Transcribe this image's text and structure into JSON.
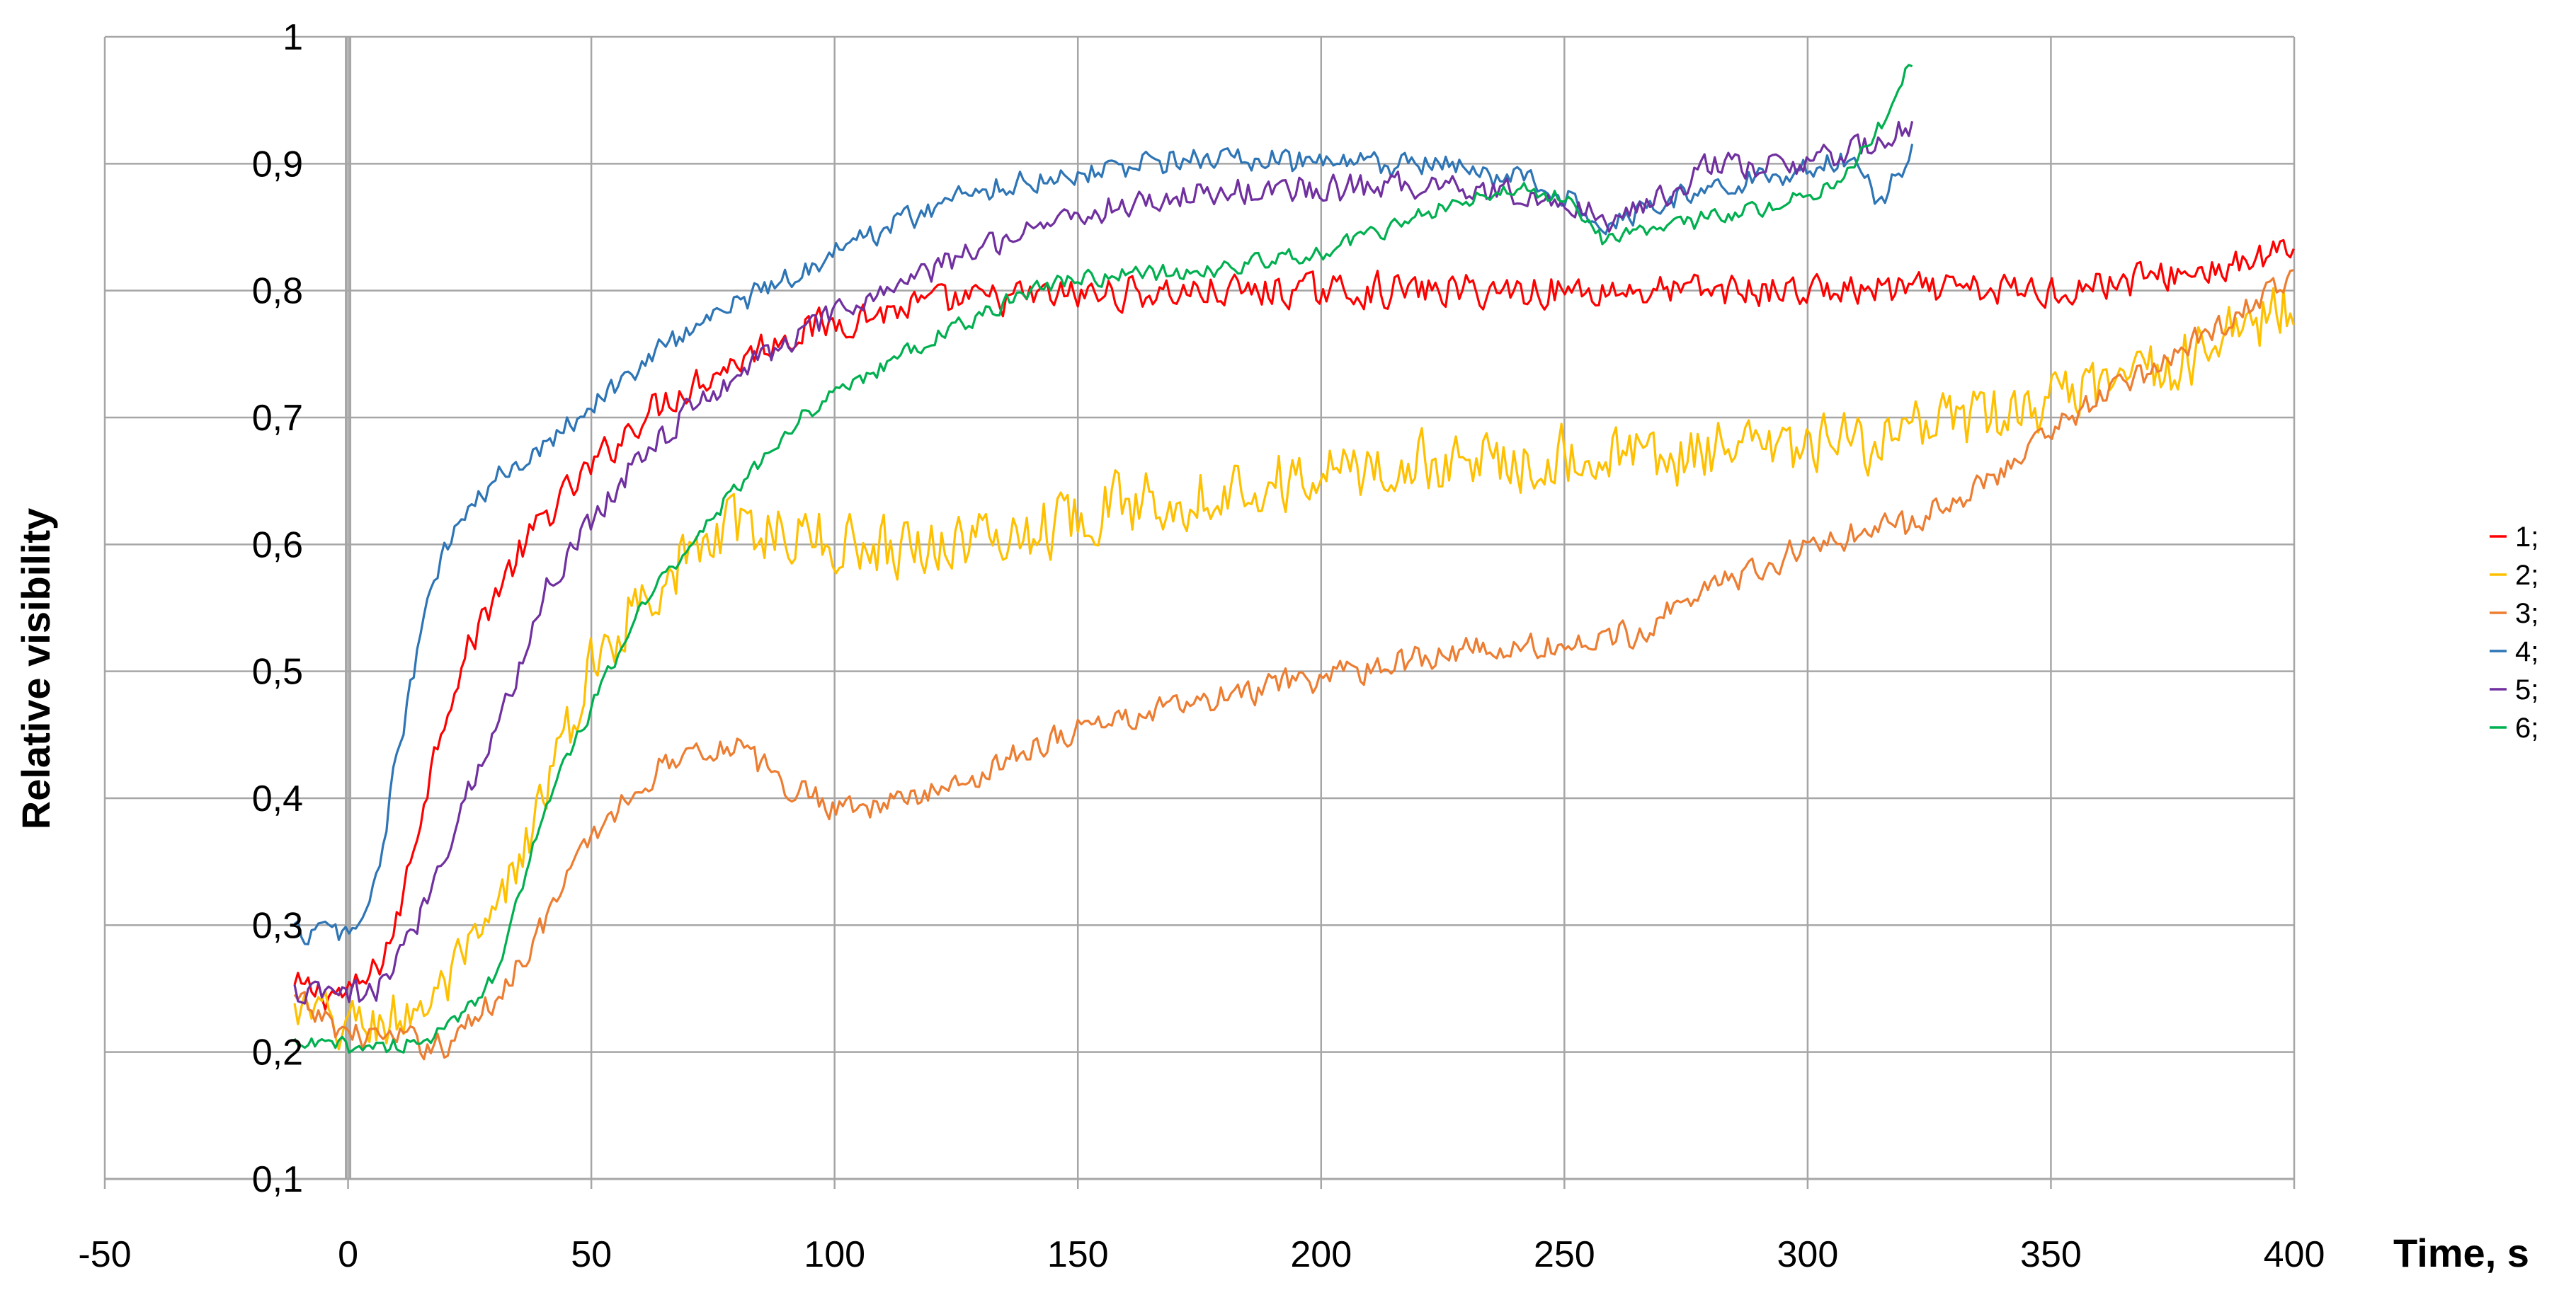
{
  "chart_data": {
    "type": "line",
    "title": "",
    "xlabel": "Time, s",
    "ylabel": "Relative visibility",
    "xlim": [
      -50,
      400
    ],
    "ylim": [
      0.1,
      1
    ],
    "x_ticks": [
      -50,
      0,
      50,
      100,
      150,
      200,
      250,
      300,
      350,
      400
    ],
    "x_tick_labels": [
      "-50",
      "0",
      "50",
      "100",
      "150",
      "200",
      "250",
      "300",
      "350",
      "400"
    ],
    "y_ticks": [
      0.1,
      0.2,
      0.3,
      0.4,
      0.5,
      0.6,
      0.7,
      0.8,
      0.9,
      1
    ],
    "y_tick_labels": [
      "0,1",
      "0,2",
      "0,3",
      "0,4",
      "0,5",
      "0,6",
      "0,7",
      "0,8",
      "0,9",
      "1"
    ],
    "grid": true,
    "legend_position": "right",
    "series": [
      {
        "name": "1;",
        "color": "#ff0000",
        "noise": 0.012,
        "points": [
          [
            -11,
            0.25
          ],
          [
            0,
            0.245
          ],
          [
            5,
            0.26
          ],
          [
            10,
            0.3
          ],
          [
            15,
            0.39
          ],
          [
            20,
            0.47
          ],
          [
            25,
            0.52
          ],
          [
            30,
            0.56
          ],
          [
            40,
            0.62
          ],
          [
            50,
            0.66
          ],
          [
            60,
            0.7
          ],
          [
            70,
            0.725
          ],
          [
            80,
            0.745
          ],
          [
            90,
            0.765
          ],
          [
            100,
            0.775
          ],
          [
            110,
            0.783
          ],
          [
            120,
            0.79
          ],
          [
            140,
            0.795
          ],
          [
            160,
            0.798
          ],
          [
            200,
            0.8
          ],
          [
            250,
            0.8
          ],
          [
            300,
            0.8
          ],
          [
            350,
            0.8
          ],
          [
            390,
            0.82
          ],
          [
            400,
            0.835
          ]
        ]
      },
      {
        "name": "2;",
        "color": "#ffc000",
        "noise": 0.022,
        "points": [
          [
            -11,
            0.23
          ],
          [
            0,
            0.22
          ],
          [
            10,
            0.225
          ],
          [
            20,
            0.25
          ],
          [
            30,
            0.3
          ],
          [
            40,
            0.4
          ],
          [
            50,
            0.5
          ],
          [
            60,
            0.56
          ],
          [
            70,
            0.59
          ],
          [
            80,
            0.615
          ],
          [
            90,
            0.61
          ],
          [
            100,
            0.6
          ],
          [
            120,
            0.6
          ],
          [
            140,
            0.61
          ],
          [
            150,
            0.625
          ],
          [
            175,
            0.64
          ],
          [
            200,
            0.655
          ],
          [
            225,
            0.665
          ],
          [
            250,
            0.67
          ],
          [
            275,
            0.67
          ],
          [
            300,
            0.675
          ],
          [
            325,
            0.69
          ],
          [
            350,
            0.71
          ],
          [
            375,
            0.74
          ],
          [
            400,
            0.79
          ]
        ]
      },
      {
        "name": "3;",
        "color": "#ed7d31",
        "noise": 0.01,
        "points": [
          [
            -11,
            0.24
          ],
          [
            0,
            0.215
          ],
          [
            10,
            0.21
          ],
          [
            20,
            0.205
          ],
          [
            30,
            0.24
          ],
          [
            40,
            0.3
          ],
          [
            50,
            0.37
          ],
          [
            60,
            0.41
          ],
          [
            70,
            0.44
          ],
          [
            80,
            0.44
          ],
          [
            90,
            0.41
          ],
          [
            100,
            0.395
          ],
          [
            110,
            0.395
          ],
          [
            125,
            0.41
          ],
          [
            140,
            0.44
          ],
          [
            150,
            0.455
          ],
          [
            175,
            0.475
          ],
          [
            200,
            0.495
          ],
          [
            225,
            0.515
          ],
          [
            250,
            0.52
          ],
          [
            265,
            0.53
          ],
          [
            275,
            0.56
          ],
          [
            290,
            0.58
          ],
          [
            300,
            0.6
          ],
          [
            320,
            0.615
          ],
          [
            335,
            0.645
          ],
          [
            350,
            0.69
          ],
          [
            375,
            0.75
          ],
          [
            400,
            0.81
          ]
        ]
      },
      {
        "name": "4;",
        "color": "#2e75b6",
        "noise": 0.009,
        "points": [
          [
            -11,
            0.295
          ],
          [
            0,
            0.295
          ],
          [
            3,
            0.3
          ],
          [
            7,
            0.36
          ],
          [
            10,
            0.43
          ],
          [
            15,
            0.53
          ],
          [
            20,
            0.6
          ],
          [
            30,
            0.65
          ],
          [
            40,
            0.68
          ],
          [
            50,
            0.71
          ],
          [
            60,
            0.74
          ],
          [
            70,
            0.77
          ],
          [
            80,
            0.79
          ],
          [
            90,
            0.81
          ],
          [
            100,
            0.83
          ],
          [
            110,
            0.85
          ],
          [
            120,
            0.865
          ],
          [
            130,
            0.88
          ],
          [
            150,
            0.893
          ],
          [
            175,
            0.905
          ],
          [
            200,
            0.9
          ],
          [
            225,
            0.898
          ],
          [
            245,
            0.885
          ],
          [
            258,
            0.855
          ],
          [
            270,
            0.87
          ],
          [
            285,
            0.885
          ],
          [
            300,
            0.895
          ],
          [
            310,
            0.905
          ],
          [
            315,
            0.87
          ],
          [
            322,
            0.915
          ]
        ]
      },
      {
        "name": "5;",
        "color": "#7030a0",
        "noise": 0.01,
        "points": [
          [
            -11,
            0.245
          ],
          [
            5,
            0.245
          ],
          [
            10,
            0.27
          ],
          [
            15,
            0.31
          ],
          [
            20,
            0.36
          ],
          [
            25,
            0.41
          ],
          [
            30,
            0.45
          ],
          [
            35,
            0.5
          ],
          [
            40,
            0.56
          ],
          [
            50,
            0.62
          ],
          [
            60,
            0.67
          ],
          [
            70,
            0.705
          ],
          [
            80,
            0.735
          ],
          [
            90,
            0.76
          ],
          [
            100,
            0.78
          ],
          [
            110,
            0.8
          ],
          [
            120,
            0.815
          ],
          [
            130,
            0.835
          ],
          [
            140,
            0.85
          ],
          [
            150,
            0.86
          ],
          [
            175,
            0.877
          ],
          [
            200,
            0.88
          ],
          [
            225,
            0.885
          ],
          [
            245,
            0.875
          ],
          [
            260,
            0.855
          ],
          [
            270,
            0.875
          ],
          [
            280,
            0.9
          ],
          [
            290,
            0.895
          ],
          [
            300,
            0.9
          ],
          [
            310,
            0.91
          ],
          [
            322,
            0.93
          ]
        ]
      },
      {
        "name": "6;",
        "color": "#00b050",
        "noise": 0.006,
        "points": [
          [
            -11,
            0.205
          ],
          [
            10,
            0.205
          ],
          [
            20,
            0.215
          ],
          [
            30,
            0.26
          ],
          [
            35,
            0.32
          ],
          [
            40,
            0.39
          ],
          [
            50,
            0.47
          ],
          [
            60,
            0.55
          ],
          [
            70,
            0.6
          ],
          [
            80,
            0.645
          ],
          [
            90,
            0.69
          ],
          [
            100,
            0.72
          ],
          [
            110,
            0.74
          ],
          [
            120,
            0.762
          ],
          [
            130,
            0.78
          ],
          [
            140,
            0.8
          ],
          [
            150,
            0.81
          ],
          [
            175,
            0.815
          ],
          [
            200,
            0.83
          ],
          [
            225,
            0.865
          ],
          [
            240,
            0.88
          ],
          [
            250,
            0.875
          ],
          [
            258,
            0.84
          ],
          [
            270,
            0.85
          ],
          [
            285,
            0.86
          ],
          [
            300,
            0.875
          ],
          [
            310,
            0.9
          ],
          [
            315,
            0.93
          ],
          [
            320,
            0.97
          ],
          [
            322,
            0.97
          ]
        ]
      }
    ]
  }
}
